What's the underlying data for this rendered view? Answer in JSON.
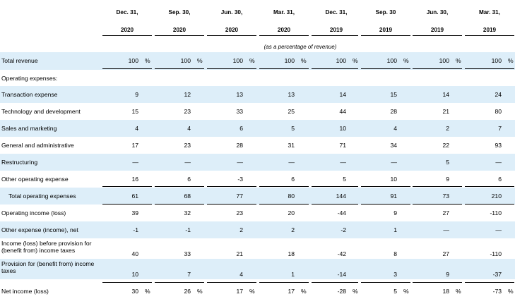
{
  "columns": [
    {
      "month": "Dec. 31,",
      "year": "2020"
    },
    {
      "month": "Sep. 30,",
      "year": "2020"
    },
    {
      "month": "Jun. 30,",
      "year": "2020"
    },
    {
      "month": "Mar. 31,",
      "year": "2020"
    },
    {
      "month": "Dec. 31,",
      "year": "2019"
    },
    {
      "month": "Sep. 30",
      "year": "2019"
    },
    {
      "month": "Jun. 30,",
      "year": "2019"
    },
    {
      "month": "Mar. 31,",
      "year": "2019"
    }
  ],
  "subheader": "(as a percentage of revenue)",
  "pct_symbol": "%",
  "rows": [
    {
      "label": "Total revenue",
      "values": [
        "100",
        "100",
        "100",
        "100",
        "100",
        "100",
        "100",
        "100"
      ],
      "pct": true
    },
    {
      "label": "Operating expenses:",
      "values": []
    },
    {
      "label": "Transaction expense",
      "values": [
        "9",
        "12",
        "13",
        "13",
        "14",
        "15",
        "14",
        "24"
      ]
    },
    {
      "label": "Technology and development",
      "values": [
        "15",
        "23",
        "33",
        "25",
        "44",
        "28",
        "21",
        "80"
      ]
    },
    {
      "label": "Sales and marketing",
      "values": [
        "4",
        "4",
        "6",
        "5",
        "10",
        "4",
        "2",
        "7"
      ]
    },
    {
      "label": "General and administrative",
      "values": [
        "17",
        "23",
        "28",
        "31",
        "71",
        "34",
        "22",
        "93"
      ]
    },
    {
      "label": "Restructuring",
      "values": [
        "—",
        "—",
        "—",
        "—",
        "—",
        "—",
        "5",
        "—"
      ]
    },
    {
      "label": "Other operating expense",
      "values": [
        "16",
        "6",
        "-3",
        "6",
        "5",
        "10",
        "9",
        "6"
      ]
    },
    {
      "label": "Total operating expenses",
      "values": [
        "61",
        "68",
        "77",
        "80",
        "144",
        "91",
        "73",
        "210"
      ]
    },
    {
      "label": "Operating income (loss)",
      "values": [
        "39",
        "32",
        "23",
        "20",
        "-44",
        "9",
        "27",
        "-110"
      ]
    },
    {
      "label": "Other expense (income), net",
      "values": [
        "-1",
        "-1",
        "2",
        "2",
        "-2",
        "1",
        "—",
        "—"
      ]
    },
    {
      "label": "Income (loss) before provision for (benefit from) income taxes",
      "values": [
        "40",
        "33",
        "21",
        "18",
        "-42",
        "8",
        "27",
        "-110"
      ]
    },
    {
      "label": "Provision for (benefit from) income taxes",
      "values": [
        "10",
        "7",
        "4",
        "1",
        "-14",
        "3",
        "9",
        "-37"
      ]
    },
    {
      "label": "Net income (loss)",
      "values": [
        "30",
        "26",
        "17",
        "17",
        "-28",
        "5",
        "18",
        "-73"
      ],
      "pct": true
    }
  ]
}
